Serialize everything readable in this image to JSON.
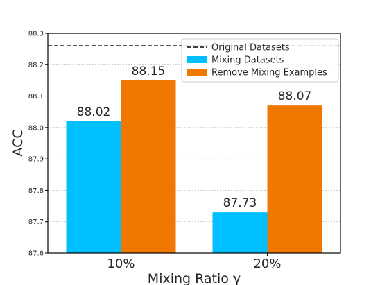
{
  "chart_data": {
    "type": "bar",
    "categories": [
      "10%",
      "20%"
    ],
    "series": [
      {
        "name": "Mixing Datasets",
        "values": [
          88.02,
          87.73
        ],
        "color": "#00bfff"
      },
      {
        "name": "Remove Mixing Examples",
        "values": [
          88.15,
          88.07
        ],
        "color": "#f07800"
      }
    ],
    "reference_line": {
      "name": "Original Datasets",
      "value": 88.26,
      "style": "dashed",
      "color": "#000000"
    },
    "data_labels": [
      [
        "88.02",
        "87.73"
      ],
      [
        "88.15",
        "88.07"
      ]
    ],
    "xlabel": "Mixing Ratio γ",
    "ylabel": "ACC",
    "ylim": [
      87.6,
      88.3
    ],
    "yticks": [
      "87.6",
      "87.7",
      "87.8",
      "87.9",
      "88.0",
      "88.1",
      "88.2",
      "88.3"
    ],
    "grid": true,
    "legend_position": "top-right"
  }
}
